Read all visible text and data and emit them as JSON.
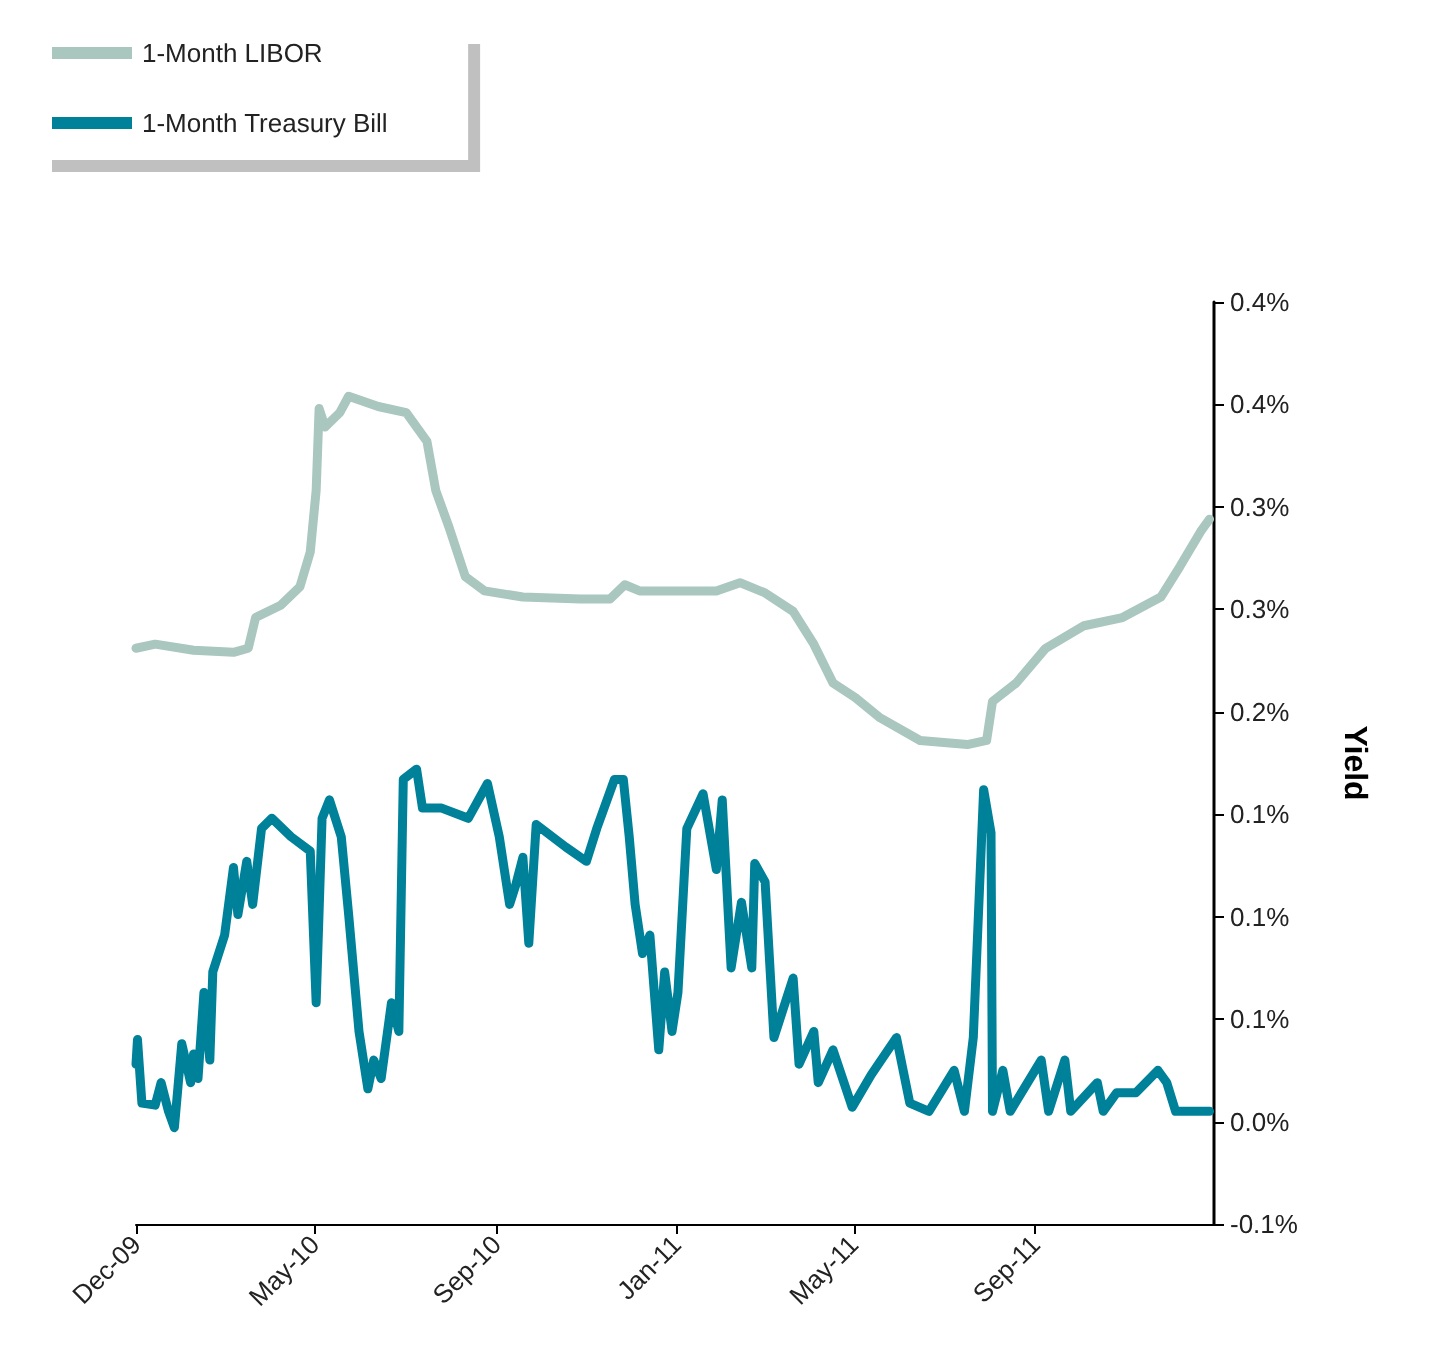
{
  "chart_data": {
    "type": "line",
    "ylabel": "Yield",
    "legend": "top left",
    "marker": "none",
    "line_style": "solid",
    "grid": false,
    "xlim": [
      "2009-12-31",
      "2011-12-31"
    ],
    "xticks": [
      {
        "value": "2009-12-31",
        "label": "Dec-09"
      },
      {
        "value": "2010-05-01",
        "label": "May-10"
      },
      {
        "value": "2010-09-01",
        "label": "Sep-10"
      },
      {
        "value": "2011-01-01",
        "label": "Jan-11"
      },
      {
        "value": "2011-05-01",
        "label": "May-11"
      },
      {
        "value": "2011-09-01",
        "label": "Sep-11"
      }
    ],
    "ylim": [
      -0.05,
      0.4
    ],
    "yticks": [
      {
        "value": -0.05,
        "label": "-0.1%"
      },
      {
        "value": 0,
        "label": "0.0%"
      },
      {
        "value": 0.05,
        "label": "0.1%"
      },
      {
        "value": 0.1,
        "label": "0.1%"
      },
      {
        "value": 0.15,
        "label": "0.1%"
      },
      {
        "value": 0.2,
        "label": "0.2%"
      },
      {
        "value": 0.25,
        "label": "0.3%"
      },
      {
        "value": 0.3,
        "label": "0.3%"
      },
      {
        "value": 0.35,
        "label": "0.4%"
      },
      {
        "value": 0.4,
        "label": "0.4%"
      }
    ],
    "series": [
      {
        "name": "1-Month LIBOR",
        "color": "#a9c6bf",
        "x": [
          "2009-12-31",
          "2010-01-13",
          "2010-02-08",
          "2010-03-07",
          "2010-03-17",
          "2010-03-22",
          "2010-04-08",
          "2010-04-21",
          "2010-04-28",
          "2010-05-02",
          "2010-05-04",
          "2010-05-08",
          "2010-05-18",
          "2010-05-24",
          "2010-06-13",
          "2010-07-02",
          "2010-07-16",
          "2010-07-22",
          "2010-07-31",
          "2010-08-11",
          "2010-08-24",
          "2010-09-19",
          "2010-10-28",
          "2010-11-17",
          "2010-11-27",
          "2010-12-07",
          "2011-01-02",
          "2011-01-28",
          "2011-02-13",
          "2011-03-02",
          "2011-03-21",
          "2011-04-04",
          "2011-04-17",
          "2011-05-02",
          "2011-05-19",
          "2011-06-15",
          "2011-07-17",
          "2011-07-30",
          "2011-08-03",
          "2011-08-19",
          "2011-09-08",
          "2011-10-04",
          "2011-10-30",
          "2011-11-25",
          "2011-12-08",
          "2011-12-22",
          "2011-12-28"
        ],
        "values": [
          0.231,
          0.233,
          0.23,
          0.229,
          0.231,
          0.246,
          0.252,
          0.261,
          0.278,
          0.308,
          0.348,
          0.339,
          0.346,
          0.354,
          0.349,
          0.346,
          0.332,
          0.308,
          0.29,
          0.266,
          0.259,
          0.256,
          0.255,
          0.255,
          0.262,
          0.259,
          0.259,
          0.259,
          0.263,
          0.258,
          0.249,
          0.233,
          0.214,
          0.207,
          0.197,
          0.186,
          0.184,
          0.186,
          0.205,
          0.214,
          0.231,
          0.242,
          0.246,
          0.256,
          0.271,
          0.288,
          0.294
        ]
      },
      {
        "name": "1-Month Treasury Bill",
        "color": "#00819a",
        "x": [
          "2009-12-31",
          "2010-01-01",
          "2010-01-04",
          "2010-01-13",
          "2010-01-17",
          "2010-01-22",
          "2010-01-26",
          "2010-01-31",
          "2010-02-06",
          "2010-02-08",
          "2010-02-11",
          "2010-02-15",
          "2010-02-19",
          "2010-02-21",
          "2010-03-01",
          "2010-03-07",
          "2010-03-10",
          "2010-03-16",
          "2010-03-20",
          "2010-03-26",
          "2010-04-02",
          "2010-04-15",
          "2010-04-28",
          "2010-05-02",
          "2010-05-06",
          "2010-05-11",
          "2010-05-19",
          "2010-05-24",
          "2010-05-31",
          "2010-06-06",
          "2010-06-10",
          "2010-06-15",
          "2010-06-22",
          "2010-06-27",
          "2010-06-30",
          "2010-07-09",
          "2010-07-13",
          "2010-07-26",
          "2010-08-13",
          "2010-08-26",
          "2010-09-03",
          "2010-09-10",
          "2010-09-14",
          "2010-09-19",
          "2010-09-23",
          "2010-09-28",
          "2010-10-18",
          "2010-11-01",
          "2010-11-08",
          "2010-11-20",
          "2010-11-26",
          "2010-11-30",
          "2010-12-04",
          "2010-12-09",
          "2010-12-14",
          "2010-12-20",
          "2010-12-24",
          "2010-12-29",
          "2011-01-02",
          "2011-01-08",
          "2011-01-19",
          "2011-01-28",
          "2011-02-01",
          "2011-02-07",
          "2011-02-14",
          "2011-02-21",
          "2011-02-23",
          "2011-03-02",
          "2011-03-08",
          "2011-03-21",
          "2011-03-25",
          "2011-04-04",
          "2011-04-07",
          "2011-04-17",
          "2011-04-30",
          "2011-05-13",
          "2011-05-30",
          "2011-06-08",
          "2011-06-21",
          "2011-07-08",
          "2011-07-15",
          "2011-07-21",
          "2011-07-28",
          "2011-08-02",
          "2011-08-03",
          "2011-08-10",
          "2011-08-15",
          "2011-09-05",
          "2011-09-10",
          "2011-09-21",
          "2011-09-25",
          "2011-10-13",
          "2011-10-17",
          "2011-10-26",
          "2011-11-08",
          "2011-11-23",
          "2011-11-29",
          "2011-12-05",
          "2011-12-28"
        ],
        "values": [
          0.028,
          0.04,
          0.009,
          0.008,
          0.019,
          0.005,
          -0.003,
          0.038,
          0.019,
          0.033,
          0.021,
          0.063,
          0.03,
          0.073,
          0.091,
          0.124,
          0.101,
          0.127,
          0.106,
          0.143,
          0.148,
          0.139,
          0.132,
          0.058,
          0.148,
          0.157,
          0.139,
          0.101,
          0.044,
          0.016,
          0.03,
          0.021,
          0.058,
          0.044,
          0.167,
          0.172,
          0.153,
          0.153,
          0.148,
          0.165,
          0.139,
          0.106,
          0.115,
          0.129,
          0.087,
          0.145,
          0.134,
          0.127,
          0.143,
          0.167,
          0.167,
          0.139,
          0.106,
          0.082,
          0.091,
          0.035,
          0.073,
          0.044,
          0.063,
          0.143,
          0.16,
          0.123,
          0.157,
          0.075,
          0.107,
          0.075,
          0.126,
          0.117,
          0.041,
          0.07,
          0.028,
          0.044,
          0.019,
          0.035,
          0.007,
          0.023,
          0.041,
          0.009,
          0.005,
          0.025,
          0.005,
          0.041,
          0.162,
          0.141,
          0.005,
          0.025,
          0.005,
          0.03,
          0.005,
          0.03,
          0.005,
          0.019,
          0.005,
          0.014,
          0.014,
          0.025,
          0.019,
          0.005,
          0.005
        ]
      }
    ]
  }
}
